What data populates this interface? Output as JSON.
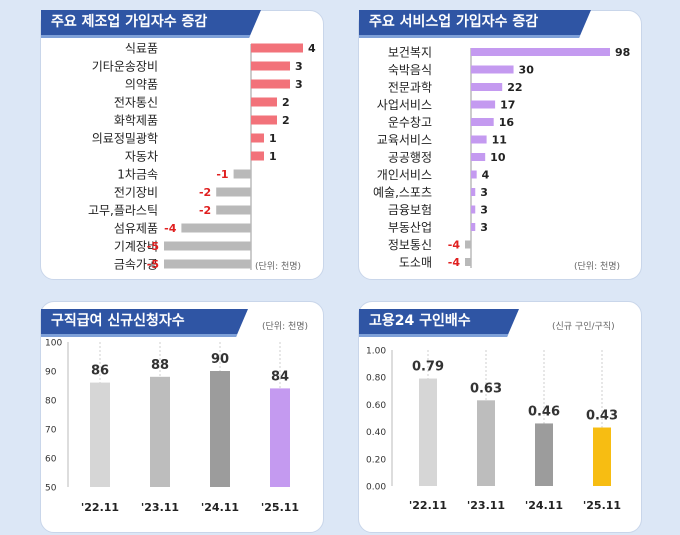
{
  "chart_data": [
    {
      "type": "bar",
      "orientation": "horizontal",
      "title": "주요 제조업 가입자수 증감",
      "unit": "(단위: 천명)",
      "categories": [
        "식료품",
        "기타운송장비",
        "의약품",
        "전자통신",
        "화학제품",
        "의료정밀광학",
        "자동차",
        "1차금속",
        "전기장비",
        "고무,플라스틱",
        "섬유제품",
        "기계장비",
        "금속가공"
      ],
      "values": [
        4,
        3,
        3,
        2,
        2,
        1,
        1,
        -1,
        -2,
        -2,
        -4,
        -5,
        -5
      ],
      "colors": {
        "positive": "#f2727a",
        "negative": "#b9b9b9",
        "negative_label": "#e02020",
        "axis": "#9a9a9a"
      }
    },
    {
      "type": "bar",
      "orientation": "horizontal",
      "title": "주요 서비스업 가입자수 증감",
      "unit": "(단위: 천명)",
      "categories": [
        "보건복지",
        "숙박음식",
        "전문과학",
        "사업서비스",
        "운수창고",
        "교육서비스",
        "공공행정",
        "개인서비스",
        "예술,스포츠",
        "금융보험",
        "부동산업",
        "정보통신",
        "도소매"
      ],
      "values": [
        98,
        30,
        22,
        17,
        16,
        11,
        10,
        4,
        3,
        3,
        3,
        -4,
        -4
      ],
      "colors": {
        "positive": "#c49af0",
        "negative": "#b9b9b9",
        "negative_label": "#e02020",
        "axis": "#9a9a9a"
      }
    },
    {
      "type": "bar",
      "title": "구직급여 신규신청자수",
      "unit": "(단위: 천명)",
      "categories": [
        "'22.11",
        "'23.11",
        "'24.11",
        "'25.11"
      ],
      "values": [
        86,
        88,
        90,
        84
      ],
      "ylim": [
        50,
        100
      ],
      "yticks": [
        "100",
        "90",
        "80",
        "70",
        "60",
        "50"
      ],
      "colors": [
        "#d6d6d6",
        "#bdbdbd",
        "#9c9c9c",
        "#c49af0"
      ]
    },
    {
      "type": "bar",
      "title": "고용24 구인배수",
      "unit": "(신규 구인/구직)",
      "categories": [
        "'22.11",
        "'23.11",
        "'24.11",
        "'25.11"
      ],
      "values": [
        0.79,
        0.63,
        0.46,
        0.43
      ],
      "value_labels": [
        "0.79",
        "0.63",
        "0.46",
        "0.43"
      ],
      "ylim": [
        0,
        1
      ],
      "yticks": [
        "1.00",
        "0.80",
        "0.60",
        "0.40",
        "0.20",
        "0.00"
      ],
      "colors": [
        "#d6d6d6",
        "#bdbdbd",
        "#9c9c9c",
        "#f7bd12"
      ]
    }
  ]
}
